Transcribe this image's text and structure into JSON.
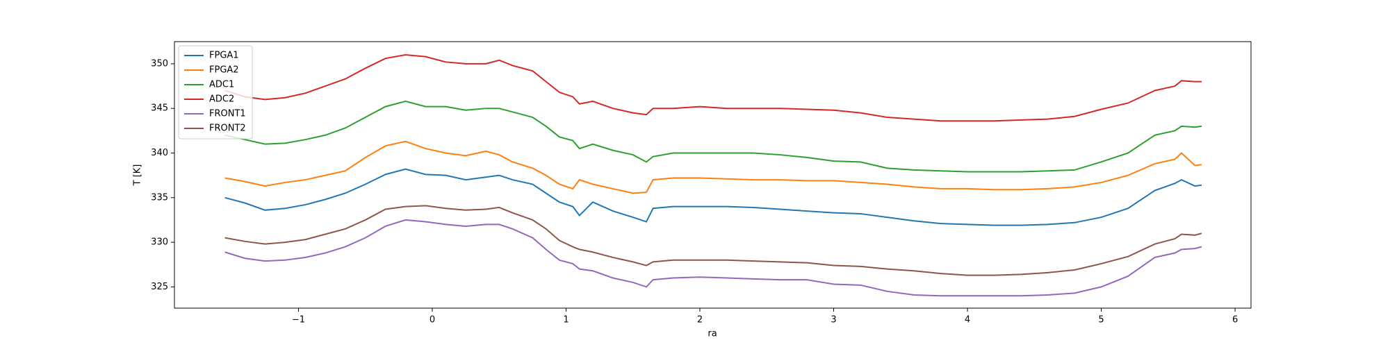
{
  "chart_data": {
    "type": "line",
    "xlabel": "ra",
    "ylabel": "T [K]",
    "x": [
      -1.55,
      -1.4,
      -1.25,
      -1.1,
      -0.95,
      -0.8,
      -0.65,
      -0.5,
      -0.35,
      -0.2,
      -0.05,
      0.1,
      0.25,
      0.4,
      0.5,
      0.6,
      0.75,
      0.85,
      0.95,
      1.05,
      1.1,
      1.2,
      1.35,
      1.5,
      1.6,
      1.65,
      1.8,
      2.0,
      2.2,
      2.4,
      2.6,
      2.8,
      3.0,
      3.2,
      3.4,
      3.6,
      3.8,
      4.0,
      4.2,
      4.4,
      4.6,
      4.8,
      5.0,
      5.2,
      5.4,
      5.55,
      5.6,
      5.7,
      5.75
    ],
    "series": [
      {
        "name": "FPGA1",
        "color": "#1f77b4",
        "values": [
          335,
          334.4,
          333.6,
          333.8,
          334.2,
          334.8,
          335.5,
          336.5,
          337.6,
          338.2,
          337.6,
          337.5,
          337,
          337.3,
          337.5,
          337,
          336.5,
          335.5,
          334.5,
          334,
          333,
          334.5,
          333.5,
          332.8,
          332.3,
          333.8,
          334,
          334,
          334,
          333.9,
          333.7,
          333.5,
          333.3,
          333.2,
          332.8,
          332.4,
          332.1,
          332,
          331.9,
          331.9,
          332,
          332.2,
          332.8,
          333.8,
          335.8,
          336.6,
          337,
          336.3,
          336.4
        ]
      },
      {
        "name": "FPGA2",
        "color": "#ff7f0e",
        "values": [
          337.2,
          336.8,
          336.3,
          336.7,
          337,
          337.5,
          338,
          339.5,
          340.8,
          341.3,
          340.5,
          340,
          339.7,
          340.2,
          339.8,
          339,
          338.3,
          337.5,
          336.5,
          336,
          337,
          336.5,
          336,
          335.5,
          335.6,
          337,
          337.2,
          337.2,
          337.1,
          337,
          337,
          336.9,
          336.9,
          336.7,
          336.5,
          336.2,
          336,
          336,
          335.9,
          335.9,
          336,
          336.2,
          336.7,
          337.5,
          338.8,
          339.3,
          340,
          338.6,
          338.7
        ]
      },
      {
        "name": "ADC1",
        "color": "#2ca02c",
        "values": [
          342,
          341.5,
          341,
          341.1,
          341.5,
          342,
          342.8,
          344,
          345.2,
          345.8,
          345.2,
          345.2,
          344.8,
          345,
          345,
          344.6,
          344,
          343,
          341.8,
          341.4,
          340.5,
          341,
          340.3,
          339.8,
          339,
          339.6,
          340,
          340,
          340,
          340,
          339.8,
          339.5,
          339.1,
          339,
          338.3,
          338.1,
          338,
          337.9,
          337.9,
          337.9,
          338,
          338.1,
          339,
          340,
          342,
          342.5,
          343,
          342.9,
          343
        ]
      },
      {
        "name": "ADC2",
        "color": "#d62728",
        "values": [
          347,
          346.3,
          346,
          346.2,
          346.7,
          347.5,
          348.3,
          349.5,
          350.6,
          351,
          350.8,
          350.2,
          350,
          350,
          350.4,
          349.8,
          349.2,
          348,
          346.8,
          346.3,
          345.5,
          345.8,
          345,
          344.5,
          344.3,
          345,
          345,
          345.2,
          345,
          345,
          345,
          344.9,
          344.8,
          344.5,
          344,
          343.8,
          343.6,
          343.6,
          343.6,
          343.7,
          343.8,
          344.1,
          344.9,
          345.6,
          347,
          347.5,
          348.1,
          348,
          348
        ]
      },
      {
        "name": "FRONT1",
        "color": "#9467bd",
        "values": [
          328.9,
          328.2,
          327.9,
          328,
          328.3,
          328.8,
          329.5,
          330.5,
          331.8,
          332.5,
          332.3,
          332,
          331.8,
          332,
          332,
          331.5,
          330.5,
          329.2,
          328,
          327.6,
          327,
          326.8,
          326,
          325.5,
          325,
          325.8,
          326,
          326.1,
          326,
          325.9,
          325.8,
          325.8,
          325.3,
          325.2,
          324.5,
          324.1,
          324,
          324,
          324,
          324,
          324.1,
          324.3,
          325,
          326.2,
          328.3,
          328.8,
          329.2,
          329.3,
          329.5
        ]
      },
      {
        "name": "FRONT2",
        "color": "#8c564b",
        "values": [
          330.5,
          330.1,
          329.8,
          330,
          330.3,
          330.9,
          331.5,
          332.5,
          333.7,
          334,
          334.1,
          333.8,
          333.6,
          333.7,
          333.9,
          333.3,
          332.5,
          331.5,
          330.2,
          329.5,
          329.2,
          328.9,
          328.3,
          327.8,
          327.4,
          327.8,
          328,
          328,
          328,
          327.9,
          327.8,
          327.7,
          327.4,
          327.3,
          327,
          326.8,
          326.5,
          326.3,
          326.3,
          326.4,
          326.6,
          326.9,
          327.6,
          328.4,
          329.8,
          330.4,
          330.9,
          330.8,
          331
        ]
      }
    ],
    "xlim": [
      -1.927,
      6.119
    ],
    "ylim": [
      322.62,
      352.48
    ],
    "xticks": [
      {
        "value": -1,
        "label": "−1"
      },
      0,
      1,
      2,
      3,
      4,
      5,
      6
    ],
    "yticks": [
      325,
      330,
      335,
      340,
      345,
      350
    ],
    "legend": "upper left"
  }
}
